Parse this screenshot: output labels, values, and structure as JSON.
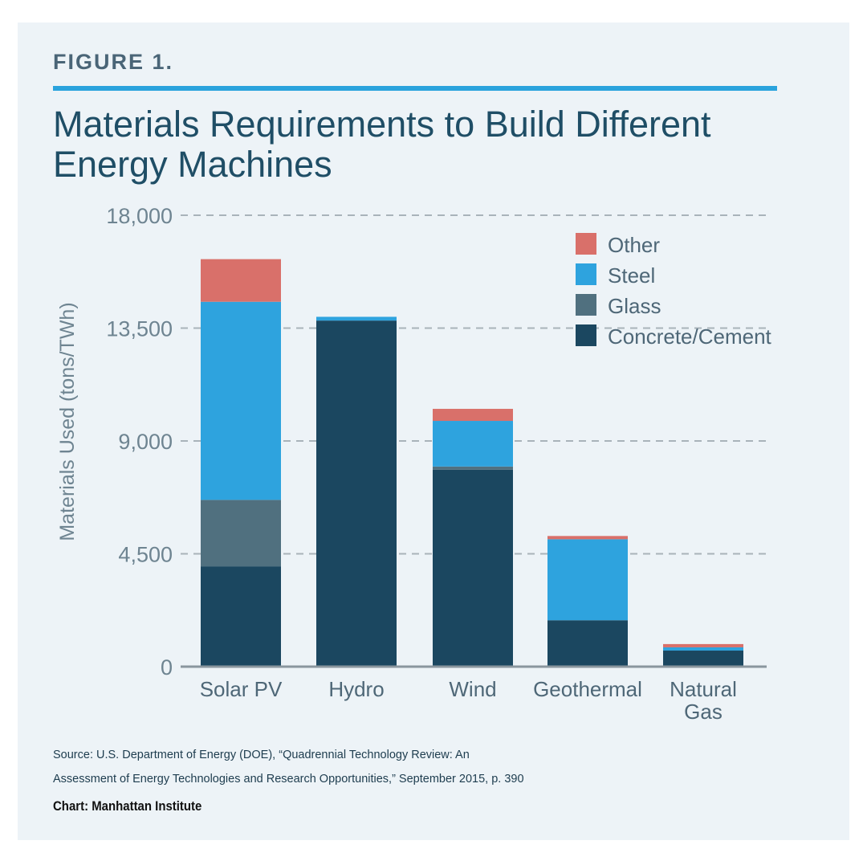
{
  "figure_label": "FIGURE 1.",
  "source_line1": "Source: U.S. Department of Energy (DOE), “Quadrennial Technology Review: An",
  "source_line2": "Assessment of Energy Technologies and Research Opportunities,” September 2015, p. 390",
  "credit": "Chart: Manhattan Institute",
  "chart_data": {
    "type": "bar",
    "stacked": true,
    "title": "Materials Requirements to Build Different Energy Machines",
    "xlabel": "",
    "ylabel": "Materials Used (tons/TWh)",
    "ylim": [
      0,
      18000
    ],
    "yticks": [
      0,
      4500,
      9000,
      13500,
      18000
    ],
    "ytick_labels": [
      "0",
      "4,500",
      "9,000",
      "13,500",
      "18,000"
    ],
    "grid": "horizontal dashed",
    "legend_position": "top-right",
    "categories": [
      "Solar PV",
      "Hydro",
      "Wind",
      "Geothermal",
      "Natural Gas"
    ],
    "category_lines": [
      [
        "Solar PV"
      ],
      [
        "Hydro"
      ],
      [
        "Wind"
      ],
      [
        "Geothermal"
      ],
      [
        "Natural",
        "Gas"
      ]
    ],
    "series": [
      {
        "name": "Concrete/Cement",
        "color": "#1b4760",
        "values": [
          4000,
          13800,
          7850,
          1850,
          640
        ]
      },
      {
        "name": "Glass",
        "color": "#50707f",
        "values": [
          2650,
          0,
          130,
          0,
          0
        ]
      },
      {
        "name": "Steel",
        "color": "#2ea3de",
        "values": [
          7900,
          150,
          1820,
          3230,
          130
        ]
      },
      {
        "name": "Other",
        "color": "#d9706a",
        "values": [
          1700,
          0,
          480,
          130,
          130
        ]
      }
    ],
    "legend_order": [
      "Other",
      "Steel",
      "Glass",
      "Concrete/Cement"
    ]
  }
}
